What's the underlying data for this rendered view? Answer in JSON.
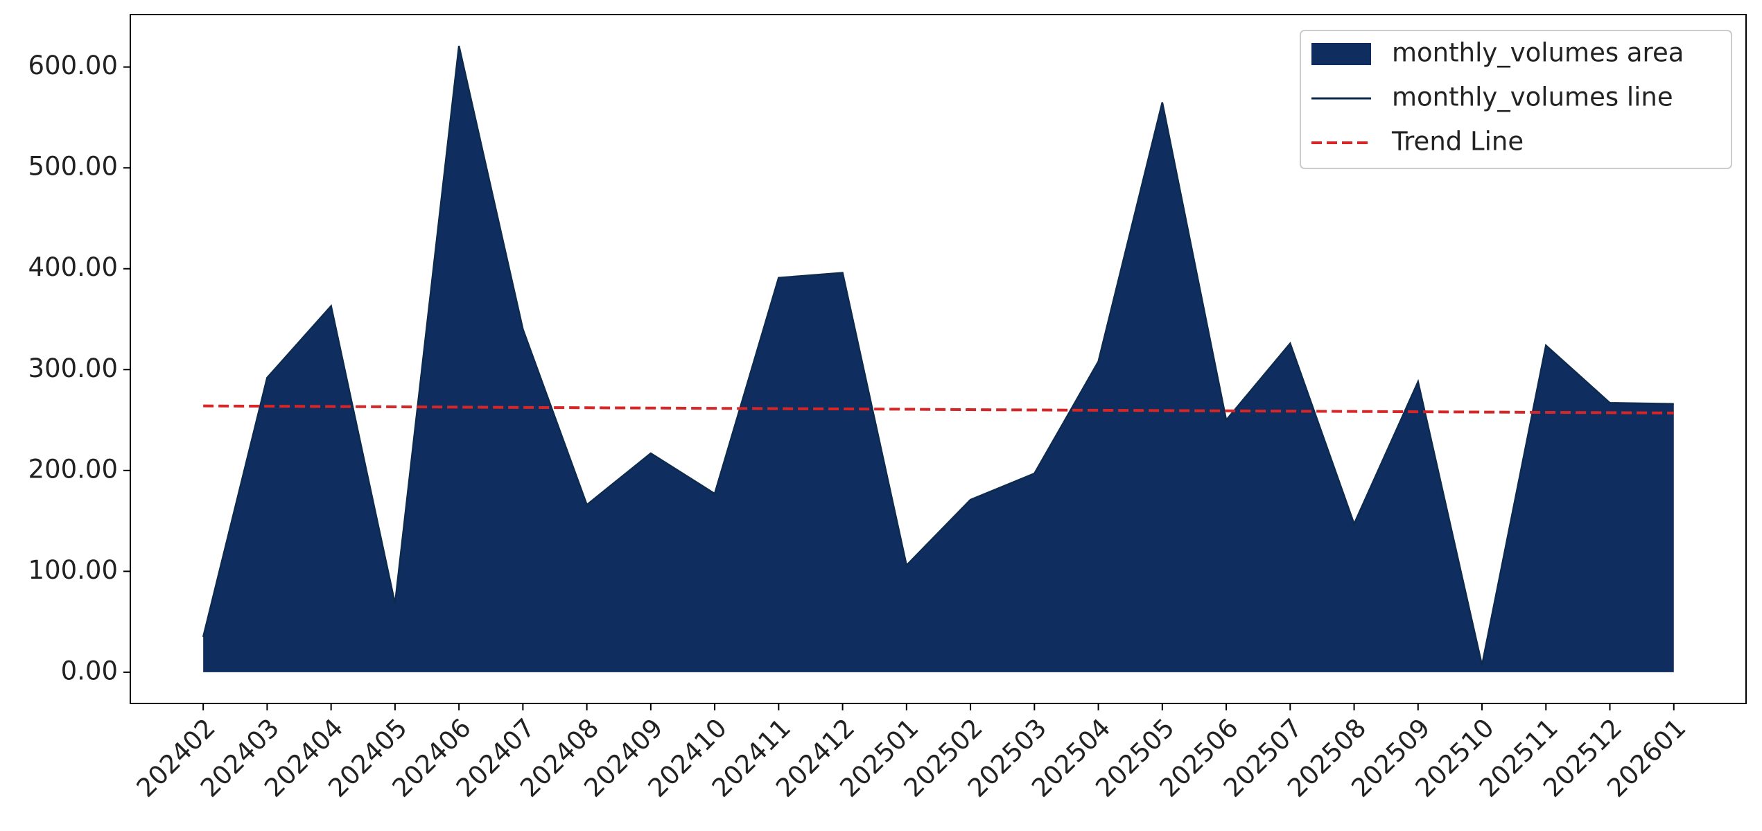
{
  "chart_data": {
    "type": "area",
    "categories": [
      "202402",
      "202403",
      "202404",
      "202405",
      "202406",
      "202407",
      "202408",
      "202409",
      "202410",
      "202411",
      "202412",
      "202501",
      "202502",
      "202503",
      "202504",
      "202505",
      "202506",
      "202507",
      "202508",
      "202509",
      "202510",
      "202511",
      "202512",
      "202601"
    ],
    "series": [
      {
        "name": "monthly_volumes area",
        "kind": "area",
        "color": "#0f2d5e",
        "values": [
          35,
          292,
          363,
          68,
          621,
          340,
          166,
          217,
          177,
          391,
          396,
          106,
          171,
          197,
          308,
          565,
          250,
          326,
          147,
          288,
          7,
          324,
          267,
          266
        ]
      },
      {
        "name": "monthly_volumes line",
        "kind": "line",
        "color": "#0d2b4e",
        "values": [
          35,
          292,
          363,
          68,
          621,
          340,
          166,
          217,
          177,
          391,
          396,
          106,
          171,
          197,
          308,
          565,
          250,
          326,
          147,
          288,
          7,
          324,
          267,
          266
        ]
      },
      {
        "name": "Trend Line",
        "kind": "dashed",
        "color": "#d62728",
        "values": [
          264.0,
          263.7,
          263.4,
          263.1,
          262.8,
          262.5,
          262.2,
          261.9,
          261.6,
          261.3,
          261.0,
          260.7,
          260.3,
          260.0,
          259.7,
          259.4,
          259.1,
          258.8,
          258.5,
          258.2,
          257.9,
          257.6,
          257.3,
          257.0
        ]
      }
    ],
    "ylim": [
      -31,
      652
    ],
    "yticks": [
      {
        "value": 0,
        "label": "0.00"
      },
      {
        "value": 100,
        "label": "100.00"
      },
      {
        "value": 200,
        "label": "200.00"
      },
      {
        "value": 300,
        "label": "300.00"
      },
      {
        "value": 400,
        "label": "400.00"
      },
      {
        "value": 500,
        "label": "500.00"
      },
      {
        "value": 600,
        "label": "600.00"
      }
    ],
    "legend": "upper right",
    "grid": false
  }
}
